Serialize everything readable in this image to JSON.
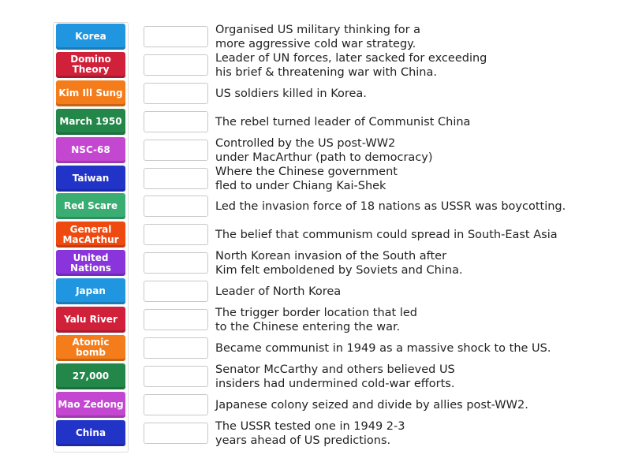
{
  "tiles": [
    {
      "label": "Korea",
      "color": "#2196e0"
    },
    {
      "label": "Domino Theory",
      "color": "#d0203a"
    },
    {
      "label": "Kim Ill Sung",
      "color": "#f57c1a"
    },
    {
      "label": "March 1950",
      "color": "#23874a"
    },
    {
      "label": "NSC-68",
      "color": "#c447d2"
    },
    {
      "label": "Taiwan",
      "color": "#2233c8"
    },
    {
      "label": "Red Scare",
      "color": "#3aae72"
    },
    {
      "label": "General MacArthur",
      "color": "#ee4a10"
    },
    {
      "label": "United Nations",
      "color": "#8a35dc"
    },
    {
      "label": "Japan",
      "color": "#2196e0"
    },
    {
      "label": "Yalu River",
      "color": "#d0203a"
    },
    {
      "label": "Atomic bomb",
      "color": "#f57c1a"
    },
    {
      "label": "27,000",
      "color": "#23874a"
    },
    {
      "label": "Mao Zedong",
      "color": "#c447d2"
    },
    {
      "label": "China",
      "color": "#2233c8"
    }
  ],
  "clues": [
    "Organised US military thinking for a\nmore aggressive cold war strategy.",
    "Leader of UN forces, later sacked for exceeding\nhis brief & threatening war with China.",
    "US soldiers killed in Korea.",
    "The rebel turned leader of Communist China",
    "Controlled by the US post-WW2\nunder MacArthur (path to democracy)",
    "Where the Chinese government\nfled to under Chiang Kai-Shek",
    "Led the invasion force of 18 nations as USSR was boycotting.",
    "The belief that communism could spread in South-East Asia",
    "North Korean invasion of the South after\nKim felt emboldened by Soviets and China.",
    "Leader of North Korea",
    "The trigger border location that led\nto the Chinese entering the war.",
    "Became communist in 1949 as a massive shock to the US.",
    "Senator McCarthy and others believed US\ninsiders had undermined cold-war efforts.",
    "Japanese colony seized and divide by allies post-WW2.",
    "The USSR tested one in 1949 2-3\nyears ahead of US predictions."
  ]
}
